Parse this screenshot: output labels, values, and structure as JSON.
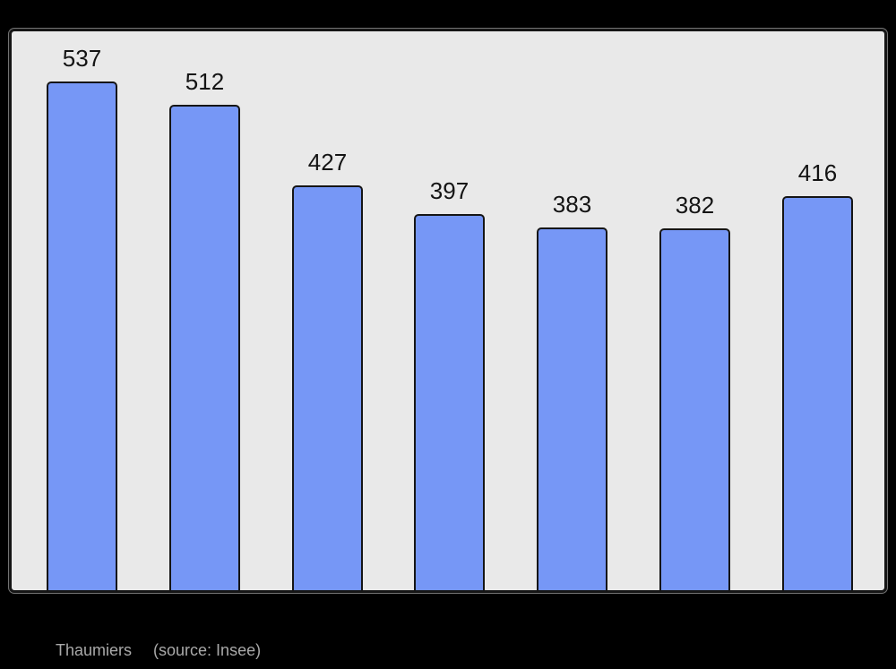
{
  "chart_data": {
    "type": "bar",
    "values": [
      537,
      512,
      427,
      397,
      383,
      382,
      416
    ],
    "bar_labels": [
      "537",
      "512",
      "427",
      "397",
      "383",
      "382",
      "416"
    ],
    "title": "",
    "xlabel": "",
    "ylabel": "",
    "ylim": [
      0,
      590
    ],
    "grid": false,
    "legend": false,
    "layout_hints": {
      "data_labels_position": "above-bars",
      "axis_tick_labels_visible": false
    },
    "colors": {
      "bar_fill": "#7697f6",
      "bar_border": "#151515",
      "plot_background": "#e9e9e9",
      "page_background": "#000000",
      "label_text": "#141414"
    }
  },
  "caption": {
    "name": "Thaumiers",
    "source": "(source: Insee)",
    "color": "#a9a9a9"
  }
}
